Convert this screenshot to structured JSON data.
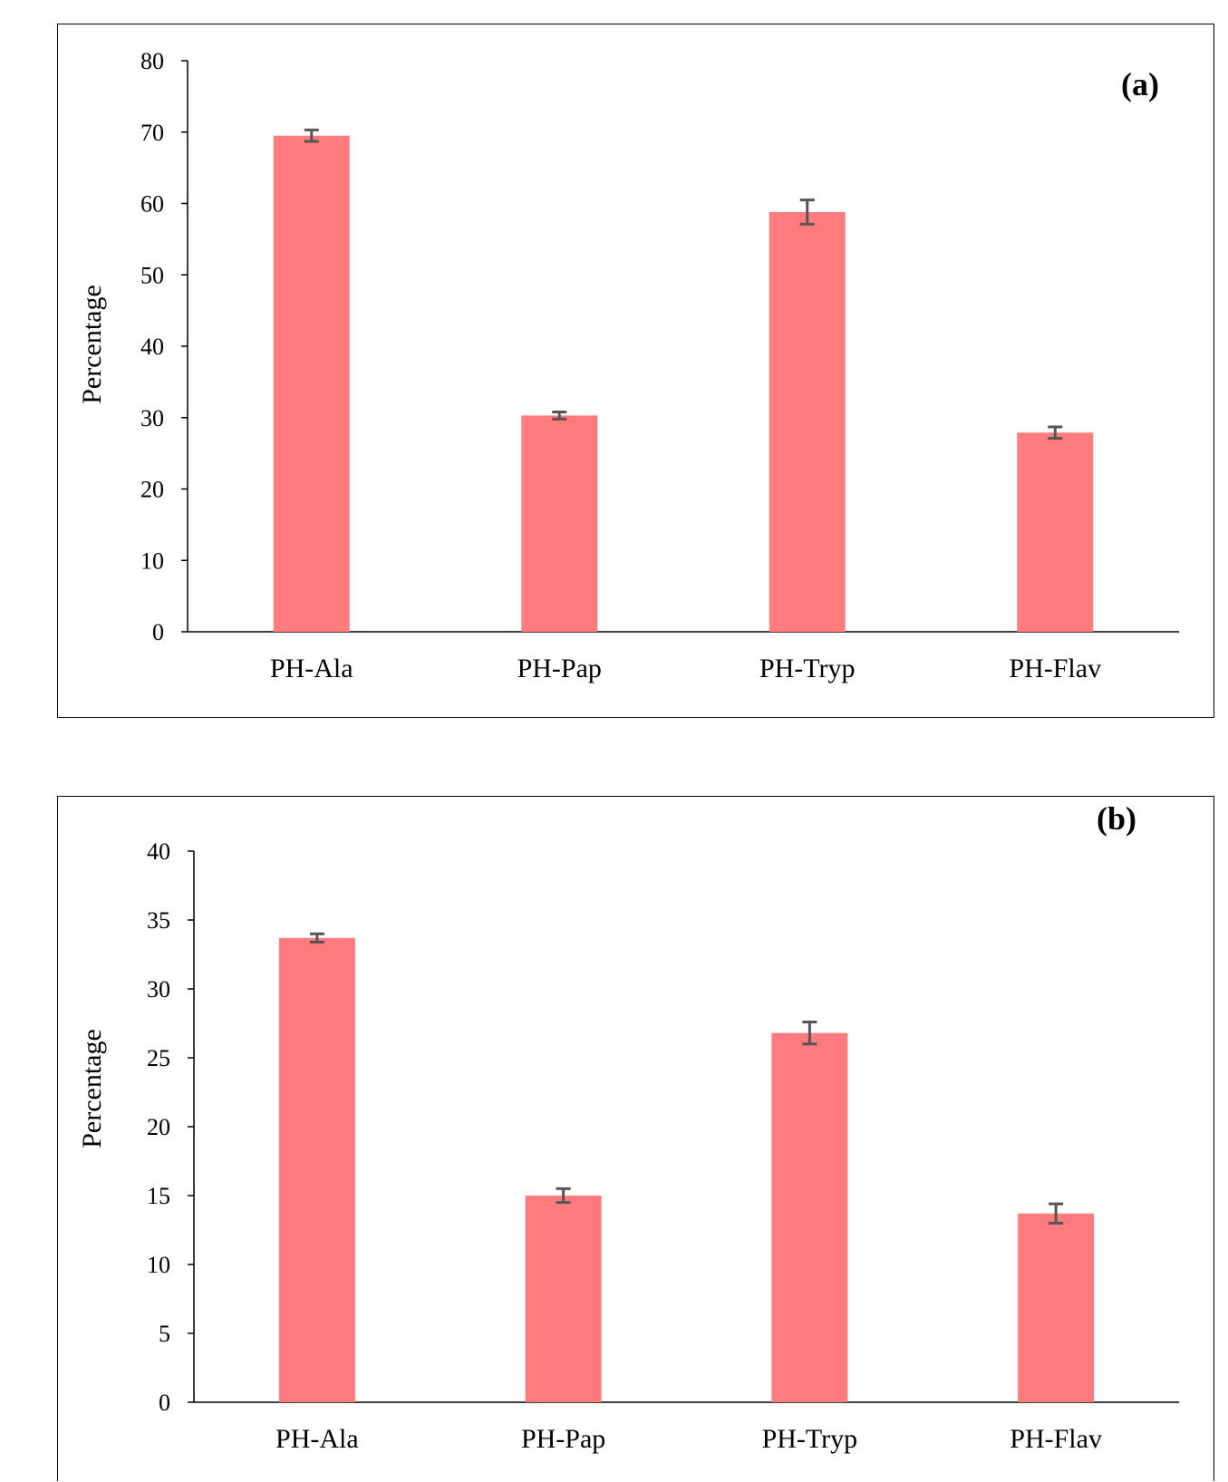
{
  "chart_data": [
    {
      "type": "bar",
      "panel_label": "(a)",
      "ylabel": "Percentage",
      "xlabel": "",
      "categories": [
        "PH-Ala",
        "PH-Pap",
        "PH-Tryp",
        "PH-Flav"
      ],
      "values": [
        69.5,
        30.3,
        58.8,
        27.9
      ],
      "errors": [
        0.8,
        0.5,
        1.7,
        0.8
      ],
      "ylim": [
        0,
        80
      ],
      "yticks": [
        0,
        10,
        20,
        30,
        40,
        50,
        60,
        70,
        80
      ],
      "grid": false,
      "bar_color": "#ff7b7e",
      "error_color": "#555555"
    },
    {
      "type": "bar",
      "panel_label": "(b)",
      "ylabel": "Percentage",
      "xlabel": "",
      "categories": [
        "PH-Ala",
        "PH-Pap",
        "PH-Tryp",
        "PH-Flav"
      ],
      "values": [
        33.7,
        15.0,
        26.8,
        13.7
      ],
      "errors": [
        0.3,
        0.5,
        0.8,
        0.7
      ],
      "ylim": [
        0,
        40
      ],
      "yticks": [
        0,
        5,
        10,
        15,
        20,
        25,
        30,
        35,
        40
      ],
      "grid": false,
      "bar_color": "#ff7b7e",
      "error_color": "#555555"
    }
  ]
}
